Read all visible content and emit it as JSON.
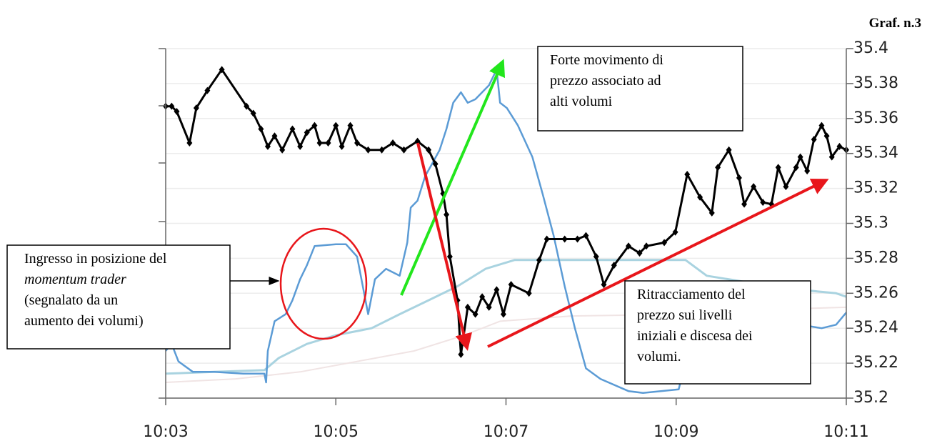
{
  "chart_data": {
    "type": "line",
    "corner_label": "Graf. n.3",
    "xlim": [
      3,
      11
    ],
    "xticks": [
      {
        "value": 3,
        "label": "10:03"
      },
      {
        "value": 5,
        "label": "10:05"
      },
      {
        "value": 7,
        "label": "10:07"
      },
      {
        "value": 9,
        "label": "10:09"
      },
      {
        "value": 11,
        "label": "10:11"
      }
    ],
    "ylim": [
      35.2,
      35.4
    ],
    "yticks": [
      35.2,
      35.22,
      35.24,
      35.26,
      35.28,
      35.3,
      35.32,
      35.34,
      35.36,
      35.38,
      35.4
    ],
    "y_axis_side": "right",
    "grid": true,
    "series": [
      {
        "color": "#f0e4e4",
        "width": 2,
        "x": [
          3.0,
          3.82,
          4.58,
          5.25,
          5.92,
          6.51,
          6.93,
          7.77,
          9.11,
          10.29,
          11.0
        ],
        "values": [
          35.209,
          35.211,
          35.215,
          35.221,
          35.227,
          35.236,
          35.244,
          35.247,
          35.248,
          35.251,
          35.252
        ]
      },
      {
        "color": "#a9d3e0",
        "width": 3,
        "x": [
          3.0,
          3.57,
          4.16,
          4.33,
          4.66,
          5.0,
          5.42,
          5.75,
          6.09,
          6.43,
          6.76,
          7.1,
          7.43,
          7.77,
          9.11,
          9.36,
          9.87,
          10.46,
          10.88,
          11.0
        ],
        "values": [
          35.214,
          35.215,
          35.216,
          35.223,
          35.231,
          35.236,
          35.24,
          35.248,
          35.256,
          35.264,
          35.274,
          35.279,
          35.279,
          35.279,
          35.279,
          35.27,
          35.266,
          35.262,
          35.26,
          35.258
        ]
      },
      {
        "color": "#5b9bd5",
        "width": 2.5,
        "x": [
          3.0,
          3.07,
          3.15,
          3.32,
          3.57,
          3.91,
          4.16,
          4.18,
          4.2,
          4.28,
          4.41,
          4.49,
          4.58,
          4.66,
          4.75,
          5.0,
          5.12,
          5.25,
          5.38,
          5.46,
          5.59,
          5.75,
          5.84,
          5.88,
          5.96,
          6.05,
          6.13,
          6.22,
          6.3,
          6.38,
          6.47,
          6.55,
          6.64,
          6.72,
          6.8,
          6.89,
          6.93,
          7.01,
          7.14,
          7.31,
          7.43,
          7.56,
          7.69,
          7.81,
          7.94,
          8.11,
          8.44,
          8.61,
          9.03,
          9.05,
          9.5,
          10.46,
          10.71,
          10.88,
          11.0
        ],
        "values": [
          35.227,
          35.231,
          35.221,
          35.215,
          35.215,
          35.214,
          35.214,
          35.209,
          35.227,
          35.244,
          35.248,
          35.256,
          35.268,
          35.276,
          35.287,
          35.288,
          35.288,
          35.281,
          35.248,
          35.268,
          35.274,
          35.27,
          35.289,
          35.309,
          35.313,
          35.327,
          35.334,
          35.342,
          35.354,
          35.369,
          35.375,
          35.369,
          35.371,
          35.375,
          35.379,
          35.388,
          35.369,
          35.366,
          35.356,
          35.338,
          35.317,
          35.293,
          35.264,
          35.24,
          35.217,
          35.211,
          35.204,
          35.203,
          35.205,
          35.209,
          null,
          35.242,
          35.24,
          35.242,
          35.249
        ]
      },
      {
        "color": "#000000",
        "width": 3,
        "marker": "diamond",
        "x": [
          3.0,
          3.07,
          3.13,
          3.28,
          3.36,
          3.49,
          3.66,
          3.95,
          4.03,
          4.12,
          4.2,
          4.28,
          4.37,
          4.49,
          4.58,
          4.66,
          4.75,
          4.81,
          4.91,
          5.0,
          5.07,
          5.17,
          5.25,
          5.38,
          5.54,
          5.67,
          5.8,
          5.96,
          6.09,
          6.17,
          6.26,
          6.3,
          6.34,
          6.43,
          6.47,
          6.55,
          6.64,
          6.72,
          6.8,
          6.89,
          6.97,
          7.06,
          7.27,
          7.39,
          7.48,
          7.69,
          7.84,
          7.94,
          8.06,
          8.15,
          8.27,
          8.44,
          8.57,
          8.65,
          8.86,
          8.99,
          9.13,
          9.28,
          9.42,
          9.49,
          9.62,
          9.74,
          9.8,
          9.91,
          10.02,
          10.12,
          10.2,
          10.29,
          10.41,
          10.46,
          10.54,
          10.62,
          10.71,
          10.77,
          10.83,
          10.92,
          11.0
        ],
        "values": [
          35.367,
          35.367,
          35.364,
          35.346,
          35.366,
          35.376,
          35.388,
          35.367,
          35.363,
          35.354,
          35.344,
          35.35,
          35.342,
          35.354,
          35.344,
          35.352,
          35.356,
          35.346,
          35.346,
          35.356,
          35.344,
          35.356,
          35.346,
          35.342,
          35.342,
          35.346,
          35.342,
          35.347,
          35.342,
          35.334,
          35.317,
          35.305,
          35.281,
          35.256,
          35.225,
          35.252,
          35.248,
          35.258,
          35.252,
          35.262,
          35.248,
          35.265,
          35.26,
          35.279,
          35.291,
          35.291,
          35.291,
          35.293,
          35.281,
          35.265,
          35.276,
          35.287,
          35.283,
          35.287,
          35.289,
          35.295,
          35.328,
          35.315,
          35.306,
          35.332,
          35.342,
          35.326,
          35.311,
          35.321,
          35.312,
          35.311,
          35.332,
          35.321,
          35.332,
          35.338,
          35.33,
          35.348,
          35.356,
          35.35,
          35.338,
          35.344,
          35.342
        ]
      }
    ],
    "annotations": [
      {
        "lines": [
          "Forte movimento di",
          "prezzo associato ad",
          "alti volumi"
        ]
      },
      {
        "lines": [
          "Ingresso in posizione del",
          "momentum trader",
          "(segnalato da un",
          "aumento dei volumi)"
        ]
      },
      {
        "lines": [
          "Ritracciamento del",
          "prezzo sui livelli",
          "iniziali e discesa dei",
          "volumi."
        ]
      }
    ]
  }
}
